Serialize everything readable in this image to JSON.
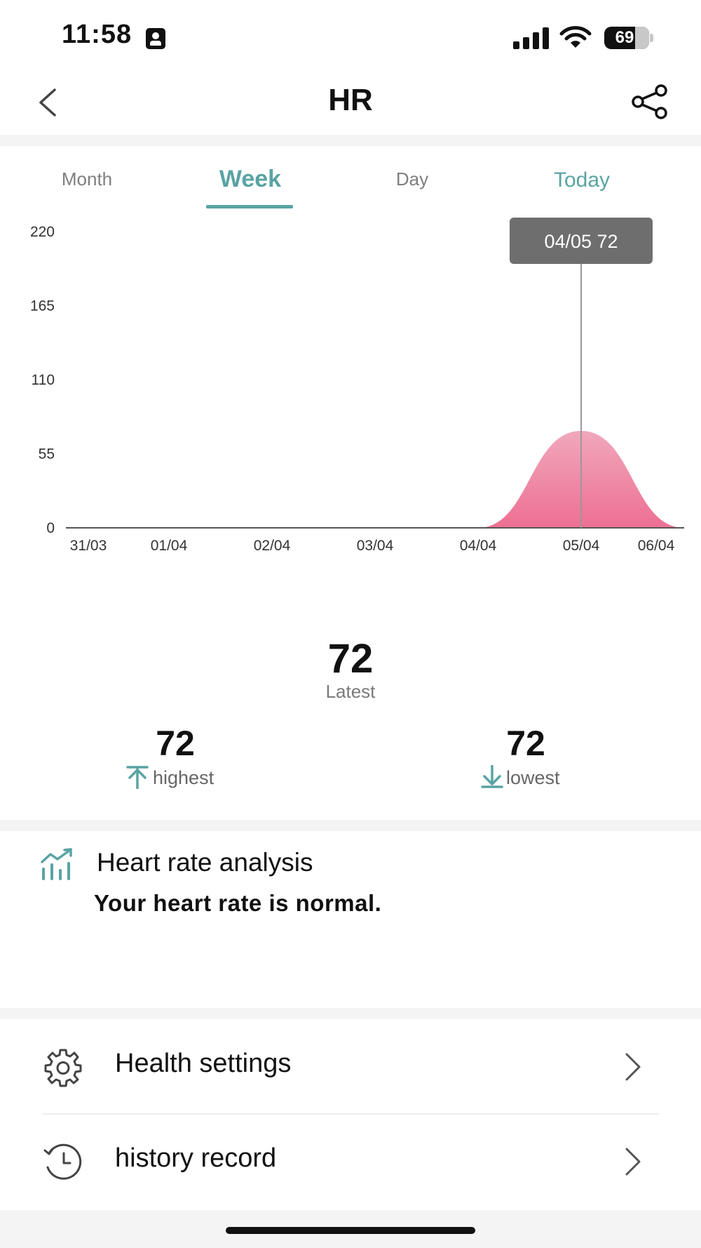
{
  "status_bar": {
    "time": "11:58",
    "battery": "69",
    "icons": [
      "contact-card-icon",
      "signal-icon",
      "wifi-icon",
      "battery-icon"
    ]
  },
  "nav": {
    "title": "HR",
    "back_icon": "chevron-left-icon",
    "share_icon": "share-icon"
  },
  "tabs": [
    {
      "label": "Month",
      "active": false
    },
    {
      "label": "Week",
      "active": true
    },
    {
      "label": "Day",
      "active": false
    },
    {
      "label": "Today",
      "active": false
    }
  ],
  "colors": {
    "accent": "#5aa3a3",
    "area_fill_top": "#f0a8bc",
    "area_fill_bottom": "#ee6f92"
  },
  "chart_data": {
    "type": "area",
    "categories": [
      "31/03",
      "01/04",
      "02/04",
      "03/04",
      "04/04",
      "05/04",
      "06/04"
    ],
    "values": [
      0,
      0,
      0,
      0,
      0,
      72,
      0
    ],
    "y_ticks": [
      0,
      55,
      110,
      165,
      220
    ],
    "ylim": [
      0,
      220
    ],
    "tooltip": "04/05 72",
    "highlight_index": 5,
    "grid": false
  },
  "stats": {
    "latest_value": "72",
    "latest_label": "Latest",
    "highest_value": "72",
    "highest_label": "highest",
    "lowest_value": "72",
    "lowest_label": "lowest"
  },
  "analysis": {
    "title": "Heart rate analysis",
    "text": "Your heart rate is normal.",
    "icon": "chart-trend-icon"
  },
  "menu": [
    {
      "label": "Health settings",
      "icon": "gear-icon"
    },
    {
      "label": "history record",
      "icon": "history-clock-icon"
    }
  ]
}
